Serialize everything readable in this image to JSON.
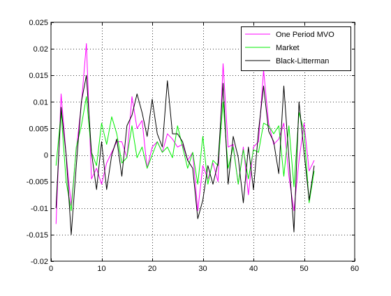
{
  "chart_data": {
    "type": "line",
    "title": "",
    "xlabel": "",
    "ylabel": "",
    "xlim": [
      0,
      60
    ],
    "ylim": [
      -0.02,
      0.025
    ],
    "xticks": [
      0,
      10,
      20,
      30,
      40,
      50,
      60
    ],
    "xtick_labels": [
      "0",
      "10",
      "20",
      "30",
      "40",
      "50",
      "60"
    ],
    "yticks": [
      -0.02,
      -0.015,
      -0.01,
      -0.005,
      0,
      0.005,
      0.01,
      0.015,
      0.02,
      0.025
    ],
    "ytick_labels": [
      "-0.02",
      "-0.015",
      "-0.01",
      "-0.005",
      "0",
      "0.005",
      "0.01",
      "0.015",
      "0.02",
      "0.025"
    ],
    "grid": true,
    "legend_position": "top-right",
    "x": [
      1,
      2,
      3,
      4,
      5,
      6,
      7,
      8,
      9,
      10,
      11,
      12,
      13,
      14,
      15,
      16,
      17,
      18,
      19,
      20,
      21,
      22,
      23,
      24,
      25,
      26,
      27,
      28,
      29,
      30,
      31,
      32,
      33,
      34,
      35,
      36,
      37,
      38,
      39,
      40,
      41,
      42,
      43,
      44,
      45,
      46,
      47,
      48,
      49,
      50,
      51,
      52
    ],
    "series": [
      {
        "name": "One Period MVO",
        "color": "#ff00ff",
        "values": [
          -0.013,
          0.0115,
          0.0,
          -0.0095,
          0.001,
          0.0095,
          0.021,
          -0.0045,
          -0.0025,
          -0.0055,
          -0.0015,
          0.0005,
          0.0025,
          0.0025,
          -0.0005,
          0.011,
          0.005,
          0.0065,
          -0.0025,
          0.0015,
          0.0025,
          0.0005,
          0.004,
          0.003,
          0.0015,
          0.002,
          -0.001,
          0.0005,
          -0.0105,
          -0.002,
          -0.0045,
          -0.0015,
          -0.005,
          0.0172,
          0.0015,
          0.002,
          -0.0055,
          0.0015,
          -0.0075,
          0.0015,
          0.0025,
          0.016,
          0.006,
          0.002,
          0.003,
          0.006,
          -0.004,
          -0.0105,
          -0.001,
          0.006,
          -0.003,
          -0.001
        ]
      },
      {
        "name": "Market",
        "color": "#00ee00",
        "values": [
          -0.002,
          0.008,
          -0.005,
          -0.0105,
          0.0015,
          0.0055,
          0.011,
          0.0005,
          -0.002,
          0.006,
          0.002,
          0.0072,
          0.004,
          -0.0015,
          -0.0005,
          0.0055,
          -0.0005,
          0.0015,
          -0.0025,
          0.0,
          0.0025,
          0.0005,
          0.0015,
          -0.0005,
          0.0055,
          0.0015,
          -0.0025,
          0.0005,
          -0.0055,
          0.0035,
          -0.0055,
          -0.001,
          -0.002,
          0.01,
          -0.0025,
          0.0015,
          -0.0055,
          0.001,
          -0.0045,
          0.001,
          0.0005,
          0.006,
          0.0055,
          0.004,
          0.0055,
          -0.004,
          0.0055,
          -0.006,
          0.008,
          0.0045,
          -0.009,
          -0.003
        ]
      },
      {
        "name": "Black-Litterman",
        "color": "#000000",
        "values": [
          -0.01,
          0.009,
          0.0,
          -0.015,
          -0.002,
          0.01,
          0.015,
          0.0005,
          -0.0065,
          0.0025,
          -0.0065,
          0.0,
          0.003,
          -0.004,
          0.0055,
          0.0075,
          0.0115,
          0.008,
          0.0035,
          0.0105,
          0.004,
          0.0015,
          0.014,
          0.004,
          0.004,
          0.0025,
          -0.001,
          -0.0025,
          -0.012,
          -0.0085,
          -0.002,
          -0.0055,
          -0.0015,
          0.0135,
          -0.0055,
          0.0035,
          -0.0005,
          -0.009,
          0.0015,
          -0.0065,
          0.0045,
          0.013,
          0.0045,
          0.0025,
          -0.0035,
          0.013,
          -0.0005,
          -0.0145,
          0.01,
          0.0005,
          -0.0085,
          -0.002
        ]
      }
    ]
  }
}
